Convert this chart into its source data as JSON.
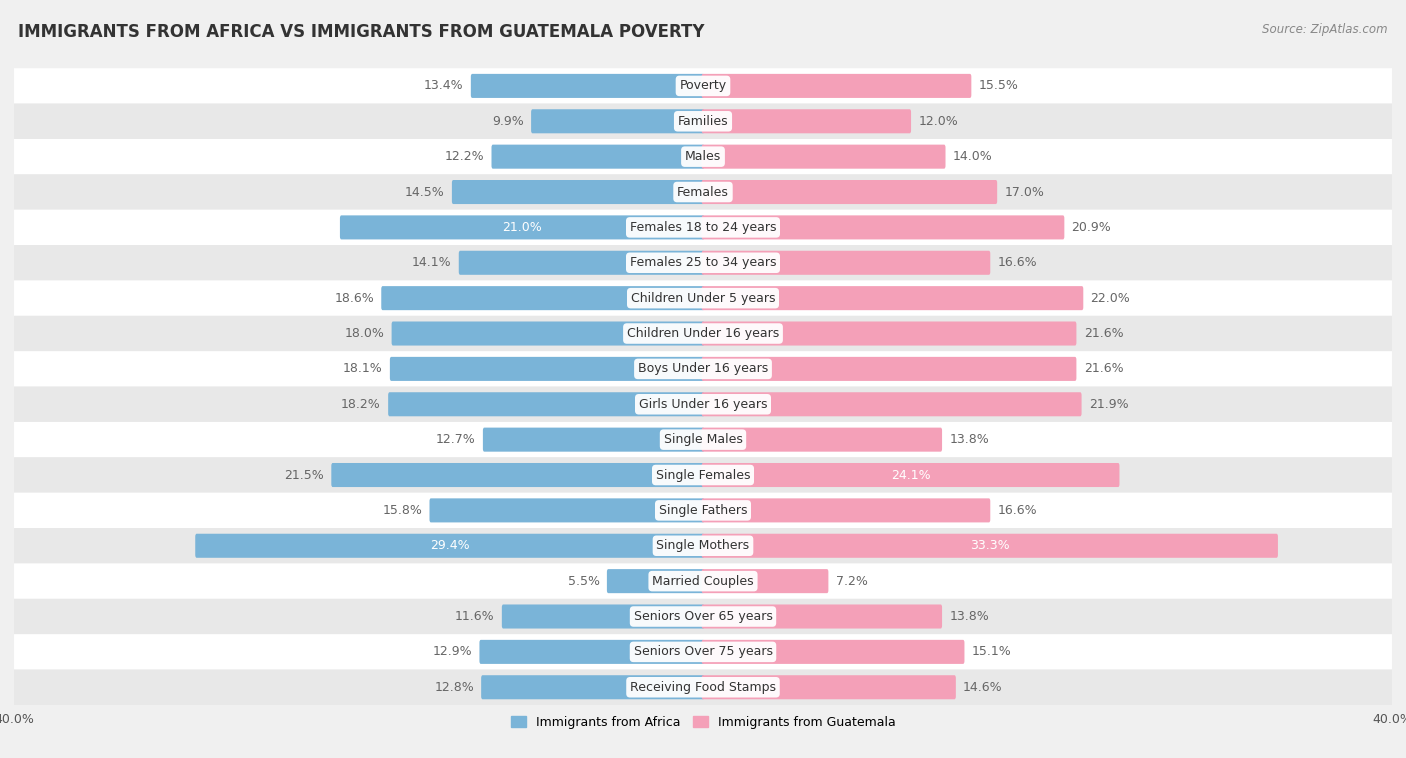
{
  "title": "IMMIGRANTS FROM AFRICA VS IMMIGRANTS FROM GUATEMALA POVERTY",
  "source": "Source: ZipAtlas.com",
  "categories": [
    "Poverty",
    "Families",
    "Males",
    "Females",
    "Females 18 to 24 years",
    "Females 25 to 34 years",
    "Children Under 5 years",
    "Children Under 16 years",
    "Boys Under 16 years",
    "Girls Under 16 years",
    "Single Males",
    "Single Females",
    "Single Fathers",
    "Single Mothers",
    "Married Couples",
    "Seniors Over 65 years",
    "Seniors Over 75 years",
    "Receiving Food Stamps"
  ],
  "africa_values": [
    13.4,
    9.9,
    12.2,
    14.5,
    21.0,
    14.1,
    18.6,
    18.0,
    18.1,
    18.2,
    12.7,
    21.5,
    15.8,
    29.4,
    5.5,
    11.6,
    12.9,
    12.8
  ],
  "guatemala_values": [
    15.5,
    12.0,
    14.0,
    17.0,
    20.9,
    16.6,
    22.0,
    21.6,
    21.6,
    21.9,
    13.8,
    24.1,
    16.6,
    33.3,
    7.2,
    13.8,
    15.1,
    14.6
  ],
  "africa_color": "#7ab4d8",
  "guatemala_color": "#f4a0b8",
  "africa_label_color_default": "#666666",
  "guatemala_label_color_default": "#666666",
  "africa_label_color_highlight": "#ffffff",
  "guatemala_label_color_highlight": "#ffffff",
  "highlight_africa": [
    4,
    13
  ],
  "highlight_guatemala": [
    11,
    13
  ],
  "xlim": [
    -40.0,
    40.0
  ],
  "bar_height": 0.52,
  "background_color": "#f0f0f0",
  "row_alt_color1": "#ffffff",
  "row_alt_color2": "#e8e8e8",
  "title_fontsize": 12,
  "label_fontsize": 9,
  "category_fontsize": 9,
  "axis_fontsize": 9,
  "legend_fontsize": 9,
  "africa_label": "Immigrants from Africa",
  "guatemala_label": "Immigrants from Guatemala"
}
